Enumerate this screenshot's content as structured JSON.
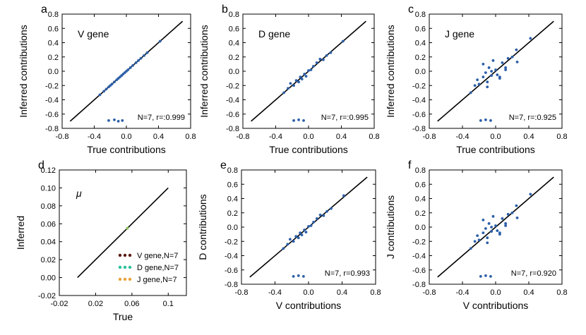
{
  "colors": {
    "points": "#2c5fa8",
    "line": "#000000",
    "legend_v": "#5a1a10",
    "legend_d": "#2bbf9b",
    "legend_j": "#e8a33a",
    "mu_point": "#8fbf5a"
  },
  "chart_data": [
    {
      "id": "a",
      "letter": "a",
      "type": "scatter",
      "title": "V gene",
      "xlabel": "True contributions",
      "ylabel": "Inferred contributions",
      "xlim": [
        -0.8,
        0.8
      ],
      "ylim": [
        -0.8,
        0.8
      ],
      "xticks": [
        -0.8,
        -0.4,
        0.0,
        0.4,
        0.8
      ],
      "xtick_labels": [
        "-0.8",
        "-0.4",
        "0.0",
        "0.4",
        "0.8"
      ],
      "yticks": [
        -0.8,
        -0.6,
        -0.4,
        -0.2,
        0.0,
        0.2,
        0.4,
        0.6,
        0.8
      ],
      "ytick_labels": [
        "-0.8",
        "-0.6",
        "-0.4",
        "-0.2",
        "0.0",
        "0.2",
        "0.4",
        "0.6",
        "0.8"
      ],
      "annotation": "N=7, r=:0.999",
      "diagonal": [
        -0.7,
        0.7
      ],
      "x": [
        -0.33,
        -0.28,
        -0.25,
        -0.22,
        -0.2,
        -0.18,
        -0.15,
        -0.12,
        -0.1,
        -0.08,
        -0.06,
        -0.04,
        -0.02,
        0.0,
        0.02,
        0.05,
        0.08,
        0.12,
        0.15,
        0.18,
        0.22,
        0.26,
        0.42,
        -0.22,
        -0.15,
        -0.1,
        -0.05
      ],
      "y": [
        -0.33,
        -0.28,
        -0.25,
        -0.22,
        -0.2,
        -0.18,
        -0.15,
        -0.12,
        -0.1,
        -0.08,
        -0.06,
        -0.04,
        -0.02,
        0.0,
        0.02,
        0.05,
        0.08,
        0.12,
        0.15,
        0.18,
        0.22,
        0.26,
        0.42,
        -0.69,
        -0.68,
        -0.7,
        -0.69
      ]
    },
    {
      "id": "b",
      "letter": "b",
      "type": "scatter",
      "title": "D gene",
      "xlabel": "True contributions",
      "ylabel": "Inferred contributions",
      "xlim": [
        -0.8,
        0.8
      ],
      "ylim": [
        -0.8,
        0.8
      ],
      "xticks": [
        -0.8,
        -0.4,
        0.0,
        0.4,
        0.8
      ],
      "xtick_labels": [
        "-0.8",
        "-0.4",
        "0.0",
        "0.4",
        "0.8"
      ],
      "yticks": [
        -0.8,
        -0.6,
        -0.4,
        -0.2,
        0.0,
        0.2,
        0.4,
        0.6,
        0.8
      ],
      "ytick_labels": [
        "-0.8",
        "-0.6",
        "-0.4",
        "-0.2",
        "0.0",
        "0.2",
        "0.4",
        "0.6",
        "0.8"
      ],
      "annotation": "N=7, r=:0.995",
      "diagonal": [
        -0.7,
        0.7
      ],
      "x": [
        -0.3,
        -0.25,
        -0.22,
        -0.18,
        -0.15,
        -0.12,
        -0.1,
        -0.08,
        -0.05,
        -0.03,
        0.0,
        0.03,
        0.06,
        0.1,
        0.14,
        0.18,
        0.22,
        0.27,
        0.42,
        -0.18,
        -0.12,
        -0.06
      ],
      "y": [
        -0.3,
        -0.24,
        -0.17,
        -0.2,
        -0.13,
        -0.15,
        -0.08,
        -0.11,
        -0.04,
        -0.07,
        0.01,
        0.02,
        0.07,
        0.12,
        0.17,
        0.16,
        0.22,
        0.26,
        0.42,
        -0.69,
        -0.68,
        -0.69
      ]
    },
    {
      "id": "c",
      "letter": "c",
      "type": "scatter",
      "title": "J gene",
      "xlabel": "True contributions",
      "ylabel": "Inferred contributions",
      "xlim": [
        -0.8,
        0.8
      ],
      "ylim": [
        -0.8,
        0.8
      ],
      "xticks": [
        -0.8,
        -0.4,
        0.0,
        0.4,
        0.8
      ],
      "xtick_labels": [
        "-0.8",
        "-0.4",
        "0.0",
        "0.4",
        "0.8"
      ],
      "yticks": [
        -0.8,
        -0.6,
        -0.4,
        -0.2,
        0.0,
        0.2,
        0.4,
        0.6,
        0.8
      ],
      "ytick_labels": [
        "-0.8",
        "-0.6",
        "-0.4",
        "-0.2",
        "0.0",
        "0.2",
        "0.4",
        "0.6",
        "0.8"
      ],
      "annotation": "N=7, r=:0.925",
      "diagonal": [
        -0.7,
        0.7
      ],
      "x": [
        -0.3,
        -0.25,
        -0.2,
        -0.22,
        -0.15,
        -0.12,
        -0.1,
        -0.08,
        -0.05,
        -0.03,
        0.0,
        0.02,
        0.05,
        0.08,
        0.12,
        0.15,
        0.2,
        0.25,
        0.26,
        0.42,
        -0.15,
        -0.1,
        -0.05,
        0.05,
        0.12,
        -0.18,
        -0.12,
        -0.06
      ],
      "y": [
        -0.3,
        -0.2,
        -0.18,
        -0.12,
        -0.08,
        -0.02,
        -0.15,
        0.05,
        0.0,
        0.15,
        0.02,
        -0.05,
        -0.1,
        0.12,
        0.05,
        0.18,
        0.2,
        0.3,
        0.13,
        0.46,
        0.1,
        -0.22,
        -0.06,
        -0.08,
        0.02,
        -0.69,
        -0.68,
        -0.69
      ]
    },
    {
      "id": "d",
      "letter": "d",
      "type": "line",
      "title": "μ",
      "xlabel": "True",
      "ylabel": "Inferred",
      "xlim": [
        -0.02,
        0.12
      ],
      "ylim": [
        -0.02,
        0.12
      ],
      "xticks": [
        -0.02,
        0.02,
        0.06,
        0.1
      ],
      "xtick_labels": [
        "-0.02",
        "0.02",
        "0.06",
        "0.1"
      ],
      "yticks": [
        -0.02,
        0.0,
        0.02,
        0.04,
        0.06,
        0.08,
        0.1,
        0.12
      ],
      "ytick_labels": [
        "-0.02",
        "0.00",
        "0.02",
        "0.04",
        "0.06",
        "0.08",
        "0.10",
        "0.12"
      ],
      "diagonal": [
        0.0,
        0.1
      ],
      "mu_point": [
        0.055,
        0.055
      ],
      "legend": [
        {
          "label": "V gene,N=7",
          "color_key": "legend_v"
        },
        {
          "label": "D gene,N=7",
          "color_key": "legend_d"
        },
        {
          "label": "J gene,N=7",
          "color_key": "legend_j"
        }
      ]
    },
    {
      "id": "e",
      "letter": "e",
      "type": "scatter",
      "title": "",
      "xlabel": "V contributions",
      "ylabel": "D contributions",
      "xlim": [
        -0.8,
        0.8
      ],
      "ylim": [
        -0.8,
        0.8
      ],
      "xticks": [
        -0.8,
        -0.4,
        0.0,
        0.4,
        0.8
      ],
      "xtick_labels": [
        "-0.8",
        "-0.4",
        "0.0",
        "0.4",
        "0.8"
      ],
      "yticks": [
        -0.8,
        -0.6,
        -0.4,
        -0.2,
        0.0,
        0.2,
        0.4,
        0.6,
        0.8
      ],
      "ytick_labels": [
        "-0.8",
        "-0.6",
        "-0.4",
        "-0.2",
        "0.0",
        "0.2",
        "0.4",
        "0.6",
        "0.8"
      ],
      "annotation": "N=7, r=0.993",
      "diagonal": [
        -0.7,
        0.7
      ],
      "x": [
        -0.3,
        -0.25,
        -0.22,
        -0.18,
        -0.15,
        -0.12,
        -0.1,
        -0.08,
        -0.05,
        -0.03,
        0.0,
        0.03,
        0.06,
        0.1,
        0.14,
        0.18,
        0.22,
        0.27,
        0.42,
        -0.18,
        -0.12,
        -0.06
      ],
      "y": [
        -0.3,
        -0.24,
        -0.17,
        -0.2,
        -0.13,
        -0.15,
        -0.08,
        -0.11,
        -0.04,
        -0.07,
        0.01,
        0.02,
        0.07,
        0.12,
        0.17,
        0.16,
        0.22,
        0.26,
        0.44,
        -0.69,
        -0.68,
        -0.69
      ]
    },
    {
      "id": "f",
      "letter": "f",
      "type": "scatter",
      "title": "",
      "xlabel": "V contributions",
      "ylabel": "J contributions",
      "xlim": [
        -0.8,
        0.8
      ],
      "ylim": [
        -0.8,
        0.8
      ],
      "xticks": [
        -0.8,
        -0.4,
        0.0,
        0.4,
        0.8
      ],
      "xtick_labels": [
        "-0.8",
        "-0.4",
        "0.0",
        "0.4",
        "0.8"
      ],
      "yticks": [
        -0.8,
        -0.6,
        -0.4,
        -0.2,
        0.0,
        0.2,
        0.4,
        0.6,
        0.8
      ],
      "ytick_labels": [
        "-0.8",
        "-0.6",
        "-0.4",
        "-0.2",
        "0.0",
        "0.2",
        "0.4",
        "0.6",
        "0.8"
      ],
      "annotation": "N=7, r=0.920",
      "diagonal": [
        -0.7,
        0.7
      ],
      "x": [
        -0.3,
        -0.25,
        -0.2,
        -0.22,
        -0.15,
        -0.12,
        -0.1,
        -0.08,
        -0.05,
        -0.03,
        0.0,
        0.02,
        0.05,
        0.08,
        0.12,
        0.15,
        0.2,
        0.25,
        0.26,
        0.42,
        -0.15,
        -0.1,
        -0.05,
        0.05,
        0.12,
        -0.18,
        -0.12,
        -0.06
      ],
      "y": [
        -0.3,
        -0.2,
        -0.18,
        -0.12,
        -0.08,
        -0.02,
        -0.15,
        0.05,
        0.0,
        0.15,
        0.02,
        -0.05,
        -0.1,
        0.12,
        0.05,
        0.18,
        0.2,
        0.3,
        0.13,
        0.46,
        0.1,
        -0.22,
        -0.06,
        -0.08,
        0.02,
        -0.69,
        -0.68,
        -0.69
      ]
    }
  ]
}
